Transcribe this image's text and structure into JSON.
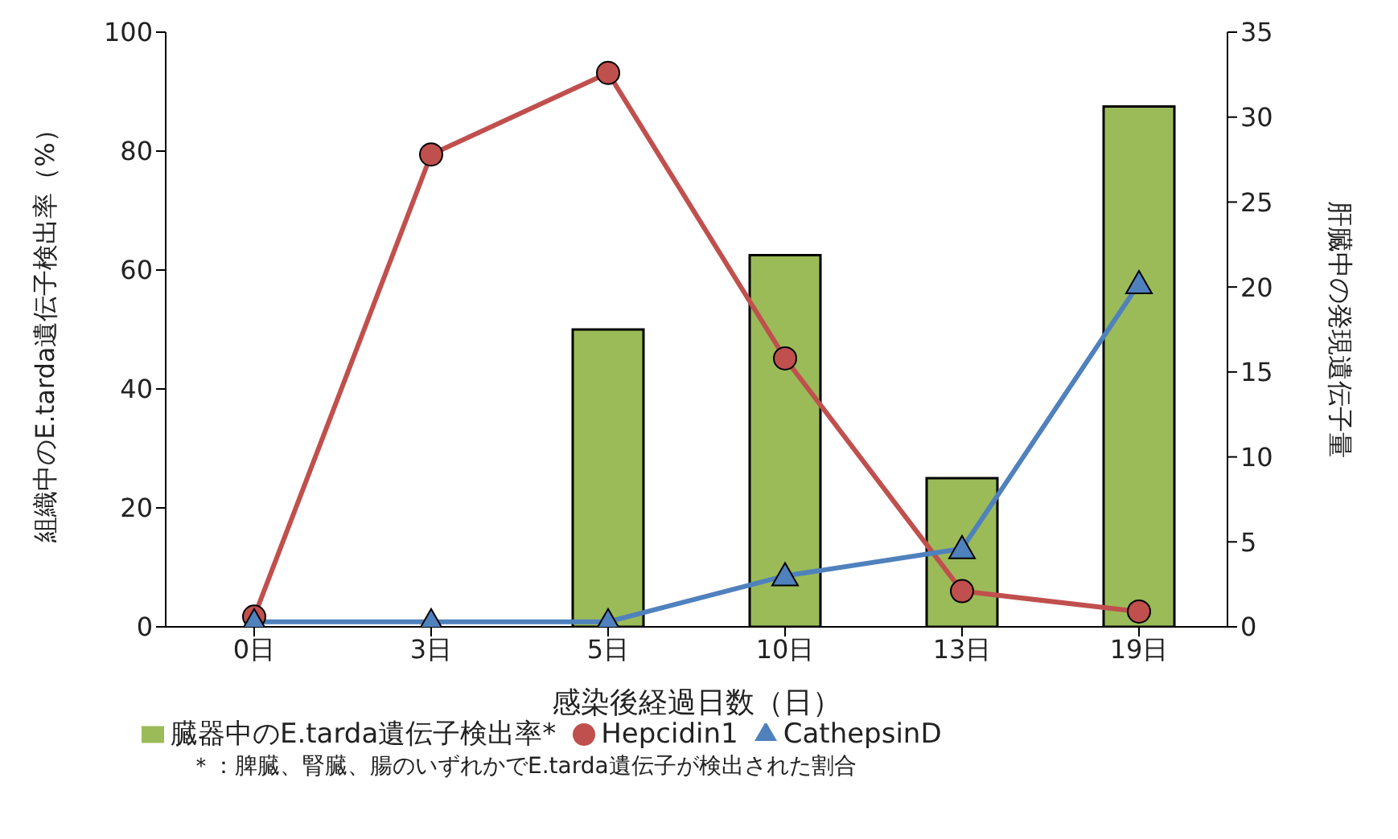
{
  "chart_data": {
    "type": "bar",
    "xlabel": "感染後経過日数（日）",
    "ylabel": "組織中のE.tarda遺伝子検出率（%）",
    "y2label": "肝臓中の発現遺伝子量",
    "categories": [
      "0日",
      "3日",
      "5日",
      "10日",
      "13日",
      "19日"
    ],
    "series": [
      {
        "name": "臓器中のE.tarda遺伝子検出率*",
        "color": "#9bbb59",
        "values": [
          0,
          0,
          50,
          62.5,
          25,
          87.5
        ]
      },
      {
        "name": "Hepcidin1",
        "type": "line",
        "axis": "y2",
        "color": "#c0504d",
        "marker": "circle",
        "values": [
          0.6,
          27.8,
          32.6,
          15.8,
          2.1,
          0.9
        ]
      },
      {
        "name": "CathepsinD",
        "type": "line",
        "axis": "y2",
        "color": "#4f81bd",
        "marker": "triangle",
        "values": [
          0.3,
          0.3,
          0.3,
          3.0,
          4.6,
          20.2
        ]
      }
    ],
    "ylim": [
      0,
      100
    ],
    "yticks": [
      0,
      20,
      40,
      60,
      80,
      100
    ],
    "y2lim": [
      0,
      35
    ],
    "y2ticks": [
      0,
      5,
      10,
      15,
      20,
      25,
      30,
      35
    ],
    "grid": false,
    "legend": "bottom",
    "annotations": [
      "＊：脾臓、腎臓、腸のいずれかでE.tarda遺伝子が検出された割合"
    ]
  }
}
